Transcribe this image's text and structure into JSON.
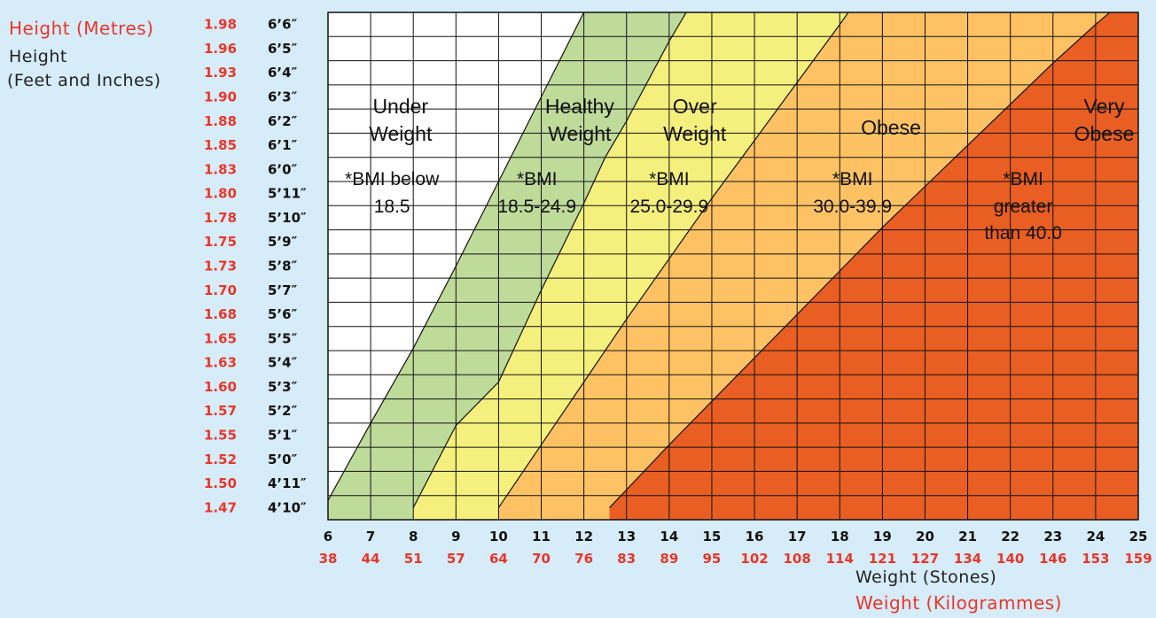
{
  "colors": {
    "background": "#d6ecf8",
    "red": "#e8362a",
    "underweight": "#ffffff",
    "healthy": "#bfdb9a",
    "overweight": "#f5ef7e",
    "obese": "#fec264",
    "very_obese": "#e95e22"
  },
  "legend": {
    "height_metres": "Height (Metres)",
    "height_feet_line1": "Height",
    "height_feet_line2": "(Feet and Inches)",
    "weight_stones": "Weight (Stones)",
    "weight_kg": "Weight (Kilogrammes)"
  },
  "chart_data": {
    "type": "area",
    "x_stones": [
      6,
      7,
      8,
      9,
      10,
      11,
      12,
      13,
      14,
      15,
      16,
      17,
      18,
      19,
      20,
      21,
      22,
      23,
      24,
      25
    ],
    "x_kg": [
      "38",
      "44",
      "51",
      "57",
      "64",
      "70",
      "76",
      "83",
      "89",
      "95",
      "102",
      "108",
      "114",
      "121",
      "127",
      "134",
      "140",
      "146",
      "153",
      "159"
    ],
    "y_metres": [
      "1.47",
      "1.50",
      "1.52",
      "1.55",
      "1.57",
      "1.60",
      "1.63",
      "1.65",
      "1.68",
      "1.70",
      "1.73",
      "1.75",
      "1.78",
      "1.80",
      "1.83",
      "1.85",
      "1.88",
      "1.90",
      "1.93",
      "1.96",
      "1.98"
    ],
    "y_feet": [
      "4’10″",
      "4’11″",
      "5’0″",
      "5’1″",
      "5’2″",
      "5’3″",
      "5’4″",
      "5’5″",
      "5’6″",
      "5’7″",
      "5’8″",
      "5’9″",
      "5’10″",
      "5’11″",
      "6’0″",
      "6’1″",
      "6’2″",
      "6’3″",
      "6’4″",
      "6’5″",
      "6’6″"
    ],
    "xlim": [
      6,
      25
    ],
    "ylim_row_index": [
      0,
      20
    ],
    "grid": true,
    "boundaries": [
      {
        "between": "Under Weight / Healthy Weight",
        "bmi": 18.5,
        "points": [
          [
            6,
            0.3
          ],
          [
            7,
            3.5
          ],
          [
            8,
            6.6
          ],
          [
            9,
            10
          ],
          [
            10,
            13.5
          ],
          [
            11,
            17
          ],
          [
            12,
            20.5
          ],
          [
            12.5,
            21.8
          ]
        ]
      },
      {
        "between": "Healthy Weight / Over Weight",
        "bmi": 25.0,
        "points": [
          [
            8,
            0
          ],
          [
            9,
            3.4
          ],
          [
            10,
            5.2
          ],
          [
            11,
            9
          ],
          [
            12,
            12.6
          ],
          [
            12.5,
            14.5
          ],
          [
            13,
            16
          ],
          [
            14,
            19.3
          ],
          [
            14.5,
            20.8
          ]
        ]
      },
      {
        "between": "Over Weight / Obese",
        "bmi": 30.0,
        "points": [
          [
            10,
            0
          ],
          [
            11,
            2.6
          ],
          [
            12,
            5.2
          ],
          [
            13,
            7.8
          ],
          [
            14,
            10.3
          ],
          [
            15,
            12.8
          ],
          [
            16,
            15.2
          ],
          [
            17,
            17.6
          ],
          [
            18,
            20
          ],
          [
            18.4,
            21
          ]
        ]
      },
      {
        "between": "Obese / Very Obese",
        "bmi": 40.0,
        "points": [
          [
            12.6,
            0
          ],
          [
            14,
            2.6
          ],
          [
            15,
            4.4
          ],
          [
            16,
            6.2
          ],
          [
            17,
            8
          ],
          [
            18,
            9.8
          ],
          [
            19,
            11.6
          ],
          [
            20,
            13.3
          ],
          [
            21,
            15
          ],
          [
            22,
            16.7
          ],
          [
            23,
            18.4
          ],
          [
            24,
            20
          ],
          [
            25,
            21.5
          ]
        ]
      }
    ],
    "regions": [
      {
        "name": "Under Weight",
        "line1": "Under",
        "line2": "Weight",
        "bmi_line1": "*BMI below",
        "bmi_line2": "18.5"
      },
      {
        "name": "Healthy Weight",
        "line1": "Healthy",
        "line2": "Weight",
        "bmi_line1": "*BMI",
        "bmi_line2": "18.5-24.9"
      },
      {
        "name": "Over Weight",
        "line1": "Over",
        "line2": "Weight",
        "bmi_line1": "*BMI",
        "bmi_line2": "25.0-29.9"
      },
      {
        "name": "Obese",
        "line1": "Obese",
        "line2": "",
        "bmi_line1": "*BMI",
        "bmi_line2": "30.0-39.9"
      },
      {
        "name": "Very Obese",
        "line1": "Very",
        "line2": "Obese",
        "bmi_line1": "*BMI",
        "bmi_line2": "greater",
        "bmi_line3": "than 40.0"
      }
    ]
  }
}
